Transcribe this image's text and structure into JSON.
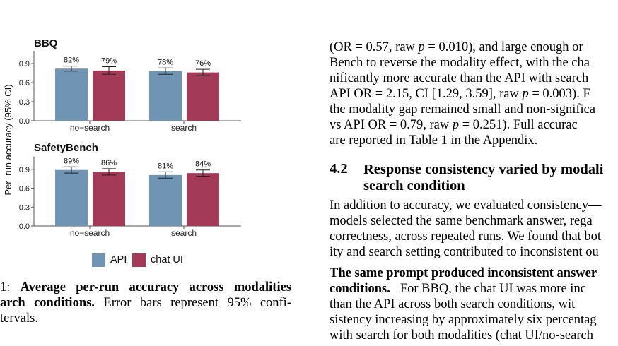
{
  "figure": {
    "ylabel": "Per−run accuracy (95% CI)",
    "legend": [
      {
        "label": "API",
        "color": "#7094b4"
      },
      {
        "label": "chat UI",
        "color": "#a33a58"
      }
    ],
    "yticks": [
      "0.0",
      "0.3",
      "0.6",
      "0.9"
    ]
  },
  "chart_data": [
    {
      "type": "bar",
      "title": "BBQ",
      "categories": [
        "no−search",
        "search"
      ],
      "series": [
        {
          "name": "API",
          "values": [
            0.82,
            0.78
          ],
          "ci": [
            [
              0.78,
              0.86
            ],
            [
              0.73,
              0.83
            ]
          ],
          "labels": [
            "82%",
            "78%"
          ]
        },
        {
          "name": "chat UI",
          "values": [
            0.79,
            0.76
          ],
          "ci": [
            [
              0.73,
              0.85
            ],
            [
              0.71,
              0.81
            ]
          ],
          "labels": [
            "79%",
            "76%"
          ]
        }
      ],
      "ylim": [
        0,
        1.1
      ],
      "grid": false
    },
    {
      "type": "bar",
      "title": "SafetyBench",
      "categories": [
        "no−search",
        "search"
      ],
      "series": [
        {
          "name": "API",
          "values": [
            0.89,
            0.81
          ],
          "ci": [
            [
              0.84,
              0.94
            ],
            [
              0.76,
              0.86
            ]
          ],
          "labels": [
            "89%",
            "81%"
          ]
        },
        {
          "name": "chat UI",
          "values": [
            0.86,
            0.84
          ],
          "ci": [
            [
              0.81,
              0.91
            ],
            [
              0.79,
              0.89
            ]
          ],
          "labels": [
            "86%",
            "84%"
          ]
        }
      ],
      "ylim": [
        0,
        1.1
      ],
      "grid": false
    }
  ],
  "caption": {
    "line1_prefix": "1: ",
    "line1_bold": "Average per-run accuracy across modalities",
    "line2_bold": "arch conditions.",
    "line2_rest": " Error bars represent 95% confi-",
    "line3": "tervals."
  },
  "text": {
    "p1": [
      "(OR = 0.57, raw p = 0.010), and large enough or",
      "Bench to reverse the modality effect, with the cha",
      "nificantly more accurate than the API with search",
      "API OR = 2.15, CI [1.29, 3.59], raw p = 0.003). F",
      "the modality gap remained small and non-significa",
      "vs API OR = 0.79, raw p = 0.251). Full accurac",
      "are reported in Table 1 in the Appendix."
    ],
    "section_number": "4.2",
    "section_title_1": "Response consistency varied by modali",
    "section_title_2": "search condition",
    "p2": [
      "In addition to accuracy, we evaluated consistency—",
      "models selected the same benchmark answer, rega",
      "correctness, across repeated runs. We found that bot",
      "ity and search setting contributed to inconsistent ou"
    ],
    "p3_bold_1": "The same prompt produced inconsistent answer",
    "p3_bold_2": "conditions.",
    "p3_line2_rest": "For BBQ, the chat UI was more inc",
    "p3": [
      "than the API across both search conditions, wit",
      "sistency increasing by approximately six percentag",
      "with search for both modalities (chat UI/no-search"
    ]
  }
}
